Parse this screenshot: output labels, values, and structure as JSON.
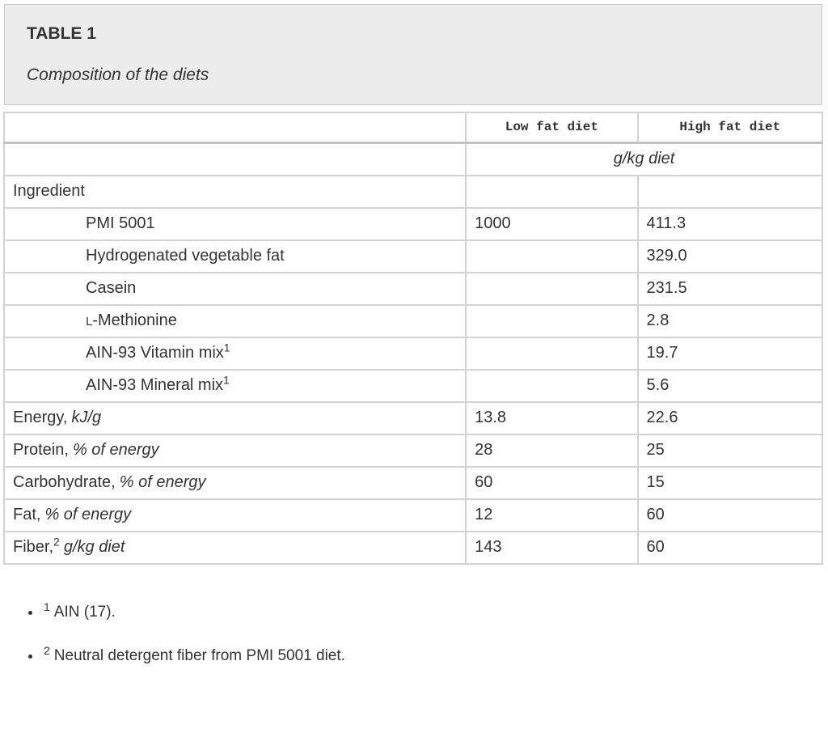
{
  "caption": {
    "label": "TABLE 1",
    "title": "Composition of the diets"
  },
  "table": {
    "columns": {
      "low": "Low fat diet",
      "high": "High fat diet"
    },
    "unit_row": "g/kg diet",
    "rows": [
      {
        "main": "Ingredient",
        "low": "",
        "high": ""
      },
      {
        "main": "PMI 5001",
        "low": "1000",
        "high": "411.3"
      },
      {
        "main": "Hydrogenated vegetable fat",
        "low": "",
        "high": "329.0"
      },
      {
        "main": "Casein",
        "low": "",
        "high": "231.5"
      },
      {
        "sc": "L",
        "main": "-Methionine",
        "low": "",
        "high": "2.8"
      },
      {
        "main": "AIN-93 Vitamin mix",
        "sup": "1",
        "low": "",
        "high": "19.7"
      },
      {
        "main": "AIN-93 Mineral mix",
        "sup": "1",
        "low": "",
        "high": "5.6"
      },
      {
        "main": "Energy,",
        "italic": "kJ/g",
        "low": "13.8",
        "high": "22.6"
      },
      {
        "main": "Protein,",
        "italic": "% of energy",
        "low": "28",
        "high": "25"
      },
      {
        "main": "Carbohydrate,",
        "italic": "% of energy",
        "low": "60",
        "high": "15"
      },
      {
        "main": "Fat,",
        "italic": "% of energy",
        "low": "12",
        "high": "60"
      },
      {
        "main": "Fiber,",
        "sup": "2",
        "italic": "g/kg diet",
        "low": "143",
        "high": "60"
      }
    ]
  },
  "footnotes": [
    {
      "sup": "1",
      "text": "AIN (17)."
    },
    {
      "sup": "2",
      "text": "Neutral detergent fiber from PMI 5001 diet."
    }
  ],
  "colors": {
    "caption_background": "#ececec",
    "border_light": "#d2d2d2",
    "border_dark": "#bdbdbd",
    "text": "#333333"
  }
}
